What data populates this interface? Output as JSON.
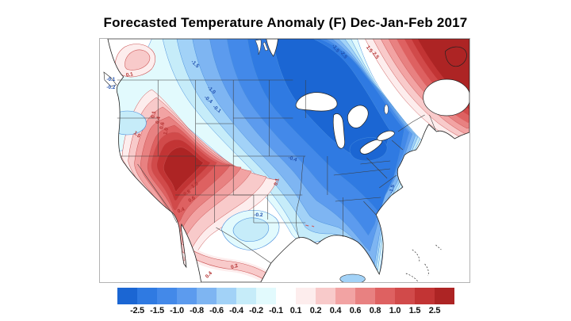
{
  "title": "Forecasted Temperature Anomaly (F) Dec-Jan-Feb 2017",
  "colorbar": {
    "tick_labels": [
      "-2.5",
      "-1.5",
      "-1.0",
      "-0.8",
      "-0.6",
      "-0.4",
      "-0.2",
      "-0.1",
      "0.1",
      "0.2",
      "0.4",
      "0.6",
      "0.8",
      "1.0",
      "1.5",
      "2.5"
    ],
    "segment_colors": [
      "#1b66d3",
      "#2f7ae2",
      "#4389e9",
      "#5c9bee",
      "#7eb5f2",
      "#a2d2f7",
      "#c6ecf9",
      "#e2fafd",
      "#ffffff",
      "#fdeded",
      "#f8caca",
      "#f2a3a3",
      "#e88181",
      "#de6161",
      "#d14a4a",
      "#c23434",
      "#ad2424"
    ]
  },
  "map": {
    "label_colors": {
      "negative": "#1f4fae",
      "positive": "#b33030"
    },
    "contour_labels": [
      {
        "text": "-0.1",
        "color": "#1f4fae"
      },
      {
        "text": "-0.2",
        "color": "#1f4fae"
      },
      {
        "text": "0.1",
        "color": "#b33030"
      },
      {
        "text": "0.4",
        "color": "#b33030"
      },
      {
        "text": "0.6",
        "color": "#b33030"
      },
      {
        "text": "1.0",
        "color": "#b33030"
      },
      {
        "text": "1.5",
        "color": "#b33030"
      },
      {
        "text": "-1.5",
        "color": "#1f4fae"
      },
      {
        "text": "-1.0",
        "color": "#1f4fae"
      },
      {
        "text": "-0.4",
        "color": "#1f4fae"
      },
      {
        "text": "-0.1",
        "color": "#1f4fae"
      },
      {
        "text": "-0.4",
        "color": "#1f4fae"
      },
      {
        "text": "0.1",
        "color": "#b33030"
      },
      {
        "text": "-0.2",
        "color": "#1f4fae"
      },
      {
        "text": "0.2",
        "color": "#b33030"
      },
      {
        "text": "0.4",
        "color": "#b33030"
      },
      {
        "text": "-1.5",
        "color": "#1f4fae"
      },
      {
        "text": "-2.5",
        "color": "#1f4fae"
      },
      {
        "text": "1.5",
        "color": "#b33030"
      },
      {
        "text": "2.5",
        "color": "#b33030"
      },
      {
        "text": "1.0",
        "color": "#b33030"
      },
      {
        "text": "0.8",
        "color": "#b33030"
      },
      {
        "text": "0.6",
        "color": "#b33030"
      },
      {
        "text": "0.4",
        "color": "#b33030"
      },
      {
        "text": "-1.5",
        "color": "#1f4fae"
      },
      {
        "text": "0.1",
        "color": "#b33030"
      }
    ]
  },
  "chart_data": {
    "type": "heatmap",
    "subtype": "filled-contour-anomaly-map",
    "title": "Forecasted Temperature Anomaly (F) Dec-Jan-Feb 2017",
    "variable": "Forecasted temperature anomaly",
    "units": "F",
    "period": "Dec-Jan-Feb 2017",
    "region": "North America (contiguous United States, southern Canada, northern Mexico, Cuba/Bahamas)",
    "contour_levels": [
      -2.5,
      -1.5,
      -1.0,
      -0.8,
      -0.6,
      -0.4,
      -0.2,
      -0.1,
      0.1,
      0.2,
      0.4,
      0.6,
      0.8,
      1.0,
      1.5,
      2.5
    ],
    "palette_low_to_high": [
      "#1b66d3",
      "#2f7ae2",
      "#4389e9",
      "#5c9bee",
      "#7eb5f2",
      "#a2d2f7",
      "#c6ecf9",
      "#e2fafd",
      "#ffffff",
      "#fdeded",
      "#f8caca",
      "#f2a3a3",
      "#e88181",
      "#de6161",
      "#d14a4a",
      "#c23434",
      "#ad2424"
    ],
    "legend_position": "bottom",
    "grid": false,
    "features": [
      {
        "area": "Northern Plains / upper Midwest / Great Lakes / central Canada",
        "anomaly_F": "-2.5 or colder",
        "description": "large cold band from Montana and the Dakotas through Minnesota, Wisconsin and the Great Lakes"
      },
      {
        "area": "Ohio Valley (Indiana/Ohio)",
        "anomaly_F": "-2.5",
        "description": "dark cold pocket"
      },
      {
        "area": "Southeast and Gulf states / Florida",
        "anomaly_F": "-0.4 to -1.0",
        "description": "moderate cold anomaly tapering toward the Gulf coast"
      },
      {
        "area": "Southwest US (Nevada/Utah/Arizona/Colorado, Four Corners)",
        "anomaly_F": "+2.5 or warmer",
        "description": "strong warm bullseye elongated NW-SE"
      },
      {
        "area": "Northeast Canada (Quebec, Maritimes, Maine, Newfoundland)",
        "anomaly_F": "+2.5 or warmer",
        "description": "strong warm region with a very tight gradient against the cold band"
      },
      {
        "area": "Pacific Northwest coast (Washington/Oregon)",
        "anomaly_F": "-0.1 to -0.2",
        "description": "slightly cool coastal pocket"
      },
      {
        "area": "British Columbia",
        "anomaly_F": "+0.1 to +0.4",
        "description": "small warm pocket"
      },
      {
        "area": "Central/South Texas",
        "anomaly_F": "-0.1 to -0.2",
        "description": "small cool pocket"
      },
      {
        "area": "Northern Mexico",
        "anomaly_F": "+0.1 to +0.4",
        "description": "warm band across northern Mexico"
      },
      {
        "area": "Cuba vicinity",
        "anomaly_F": "-0.2",
        "description": "small cool patch"
      }
    ]
  }
}
